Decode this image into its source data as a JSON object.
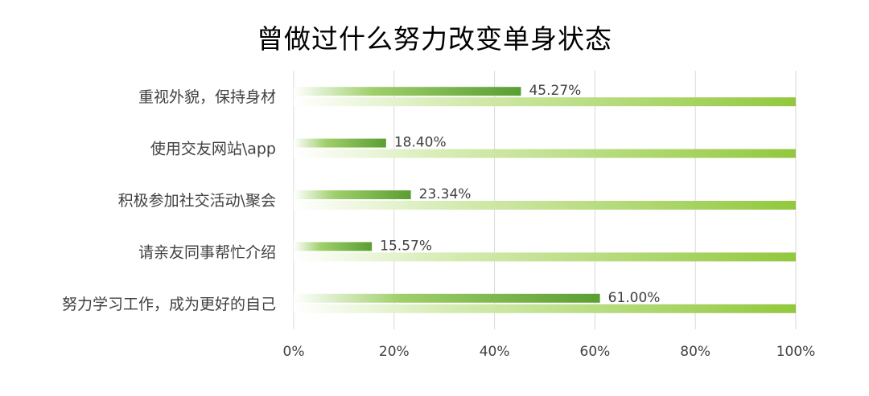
{
  "chart_data": {
    "type": "bar",
    "orientation": "horizontal",
    "title": "曾做过什么努力改变单身状态",
    "categories": [
      "重视外貌，保持身材",
      "使用交友网站\\app",
      "积极参加社交活动\\聚会",
      "请亲友同事帮忙介绍",
      "努力学习工作，成为更好的自己"
    ],
    "values": [
      45.27,
      18.4,
      23.34,
      15.57,
      61.0
    ],
    "data_labels": [
      "45.27%",
      "18.40%",
      "23.34%",
      "15.57%",
      "61.00%"
    ],
    "background_values": [
      100,
      100,
      100,
      100,
      100
    ],
    "xlim": [
      0,
      100
    ],
    "x_ticks": [
      "0%",
      "20%",
      "40%",
      "60%",
      "80%",
      "100%"
    ],
    "x_tick_values": [
      0,
      20,
      40,
      60,
      80,
      100
    ],
    "grid": true,
    "legend": "none",
    "colors": {
      "bar_dark": "#5a9e32",
      "bar_background": "#92c83e",
      "grid": "#d9d9d9",
      "text": "#404040"
    }
  }
}
